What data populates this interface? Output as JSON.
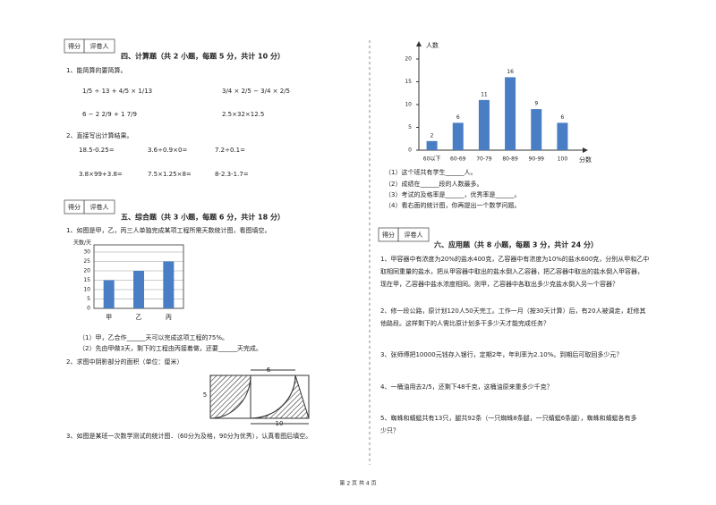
{
  "left": {
    "section4": {
      "score_box": [
        "得分",
        "评卷人"
      ],
      "title": "四、计算题（共 2 小题，每题 5 分，共计 10 分）",
      "q1": "1、能简算的要简算。",
      "q1_items": [
        "1/5 ÷ 13 + 4/5 × 1/13",
        "3/4 × 2/5 − 3/4 × 2/5",
        "6 − 2 2/9 + 1 7/9",
        "2.5×32×12.5"
      ],
      "q2": "2、直接写出计算结果。",
      "q2_items": [
        "18.5-0.25=",
        "3.6÷0.9×0=",
        "7.2÷0.1=",
        "3.8×99+3.8=",
        "7.5×1.25×8=",
        "8-2.3-1.7="
      ]
    },
    "section5": {
      "score_box": [
        "得分",
        "评卷人"
      ],
      "title": "五、综合题（共 3 小题，每题 6 分，共计 18 分）",
      "q1": "1、如图是甲，乙，丙三人单独完成某项工程所需天数统计图，看图填空。",
      "work_chart": {
        "type": "bar",
        "ylabel": "天数/天",
        "categories": [
          "甲",
          "乙",
          "丙"
        ],
        "values": [
          15,
          20,
          25
        ],
        "color": "#4a7ec4",
        "ylim": [
          0,
          30
        ],
        "yticks": [
          0,
          5,
          10,
          15,
          20,
          25,
          30
        ],
        "grid": true
      },
      "q1_parts": [
        "（1）甲，乙合作______天可以完成这项工程的75%。",
        "（2）先由甲做3天，剩下的工程由丙接着做，还要______天完成。"
      ],
      "q2": "2、求图中阴影部分的面积（单位：厘米）",
      "figure_labels": [
        "6",
        "5",
        "10"
      ],
      "q3": "3、如图是某班一次数学测试的统计图．（60分为及格，90分为优秀），认真看图后填空。"
    }
  },
  "right": {
    "score_chart": {
      "type": "bar",
      "ylabel": "人数",
      "xlabel": "分数",
      "categories": [
        "60以下",
        "60-69",
        "70-79",
        "80-89",
        "90-99",
        "100"
      ],
      "values": [
        2,
        6,
        11,
        16,
        9,
        6
      ],
      "color": "#4a7ec4",
      "ylim": [
        0,
        20
      ],
      "yticks": [
        0,
        5,
        10,
        15,
        20
      ]
    },
    "chart_parts": [
      "（1）这个班共有学生______人。",
      "（2）成绩在______段的人数最多。",
      "（3）考试的及格率是______，优秀率是______。",
      "（4）看右面的统计图，你再提出一个数学问题。"
    ],
    "section6": {
      "score_box": [
        "得分",
        "评卷人"
      ],
      "title": "六、应用题（共 8 小题，每题 3 分，共计 24 分）",
      "questions": [
        [
          "1、甲容器中有浓度为20%的盐水400克，乙容器中有浓度为10%的盐水600克，分别从甲和乙中",
          "取相同重量的盐水，把从甲容器中取出的盐水倒入乙容器，把乙容器中取出的盐水倒入甲容器，",
          "现在甲，乙容器中盐水浓度相同。则甲，乙容器中各取出多少克盐水倒入另一个容器？"
        ],
        [
          "2、修一段公路，原计划120人50天完工。工作一月（按30天计算）后，有20人被调走，赶修其",
          "他路段。这样剩下的人需比原计划多干多少天才能完成任务？"
        ],
        [
          "3、张师傅把10000元钱存入银行，定期2年，年利率为2.10%。到期后可取回多少元？"
        ],
        [
          "4、一桶油用去2/5，还剩下48千克，这桶油原来重多少千克？"
        ],
        [
          "5、蜘蛛和蜻蜓共有13只，腿共92条（一只蜘蛛8条腿，一只蜻蜓6条腿），蜘蛛和蜻蜓各有多",
          "少只？"
        ]
      ]
    }
  },
  "footer": "第 2 页 共 4 页"
}
